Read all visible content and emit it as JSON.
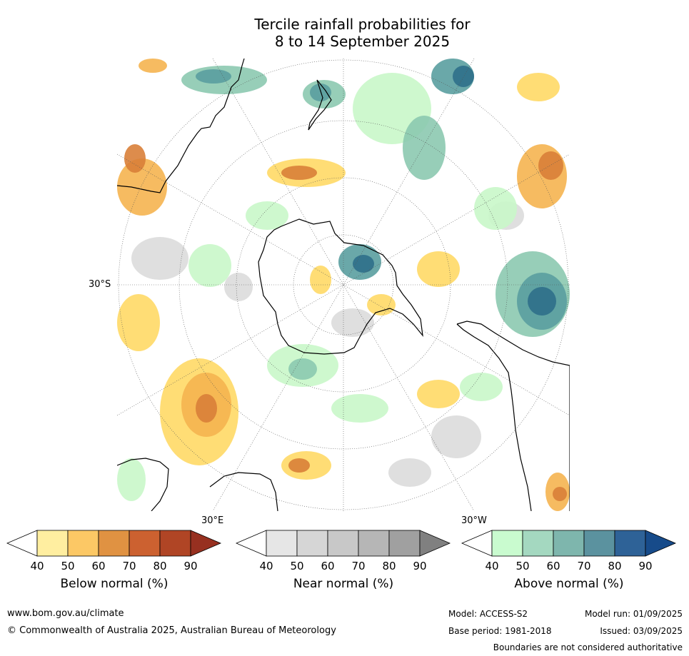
{
  "title_line1": "Tercile rainfall probabilities for",
  "title_line2": "8 to 14 September 2025",
  "map": {
    "projection": "south polar stereographic",
    "lat_label": "30°S",
    "lon_label_east": "30°E",
    "lon_label_west": "30°W",
    "colors": {
      "land_outline": "#000000",
      "graticule": "#555555",
      "below_50": "#ffd966",
      "below_60": "#f5b450",
      "below_70": "#d97f38",
      "near_50": "#dcdcdc",
      "above_50": "#c9f7c9",
      "above_60": "#8cc9b0",
      "above_70": "#5a9fa0",
      "above_80": "#2f6f8a"
    }
  },
  "colorbars": [
    {
      "title": "Below normal (%)",
      "ticks": [
        "40",
        "50",
        "60",
        "70",
        "80",
        "90"
      ],
      "colors": [
        "#ffffff",
        "#ffeea0",
        "#fcc865",
        "#e09242",
        "#cc6130",
        "#b04525",
        "#973020"
      ]
    },
    {
      "title": "Near normal (%)",
      "ticks": [
        "40",
        "50",
        "60",
        "70",
        "80",
        "90"
      ],
      "colors": [
        "#ffffff",
        "#e6e6e6",
        "#d6d6d6",
        "#c8c8c8",
        "#b6b6b6",
        "#a0a0a0",
        "#808080"
      ]
    },
    {
      "title": "Above normal (%)",
      "ticks": [
        "40",
        "50",
        "60",
        "70",
        "80",
        "90"
      ],
      "colors": [
        "#ffffff",
        "#c9fbcf",
        "#a4d8c0",
        "#7eb6ad",
        "#5b929f",
        "#2e6297",
        "#174b8a"
      ]
    }
  ],
  "footer": {
    "url": "www.bom.gov.au/climate",
    "copyright": "© Commonwealth of Australia 2025, Australian Bureau of Meteorology",
    "model": "Model: ACCESS-S2",
    "model_run": "Model run: 01/09/2025",
    "base_period": "Base period: 1981-2018",
    "issued": "Issued: 03/09/2025",
    "disclaimer": "Boundaries are not considered authoritative"
  }
}
